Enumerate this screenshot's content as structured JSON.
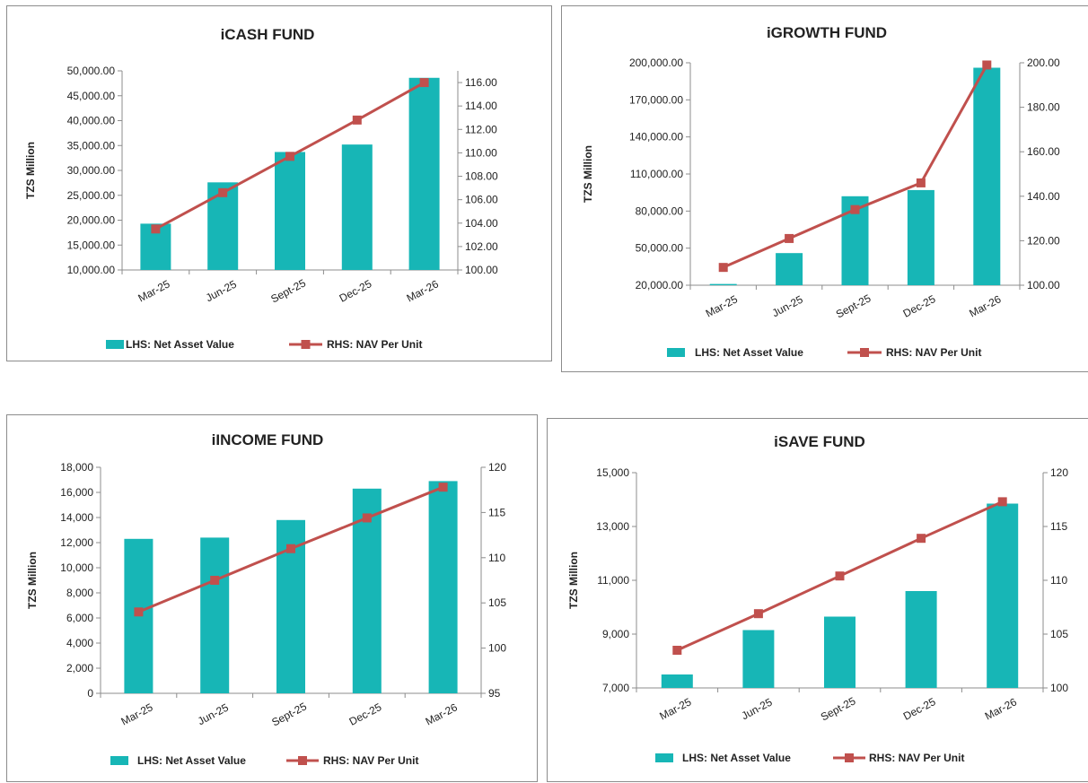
{
  "chart_data": [
    {
      "type": "bar+line",
      "title": "iCASH FUND",
      "ylabel": "TZS Million",
      "categories": [
        "Mar-25",
        "Jun-25",
        "Sept-25",
        "Dec-25",
        "Mar-26"
      ],
      "bar_series": {
        "name": "LHS: Net Asset Value",
        "values": [
          19300,
          27600,
          33700,
          35200,
          48600
        ],
        "color": "#17b6b6"
      },
      "line_series": {
        "name": "RHS: NAV Per Unit",
        "values": [
          103.5,
          106.6,
          109.7,
          112.8,
          116.0
        ],
        "color": "#c0504d"
      },
      "y_left": {
        "min": 10000,
        "max": 50000,
        "ticks": [
          "10,000.00",
          "15,000.00",
          "20,000.00",
          "25,000.00",
          "30,000.00",
          "35,000.00",
          "40,000.00",
          "45,000.00",
          "50,000.00"
        ]
      },
      "y_right": {
        "min": 100,
        "max": 117,
        "ticks": [
          "100.00",
          "102.00",
          "104.00",
          "106.00",
          "108.00",
          "110.00",
          "112.00",
          "114.00",
          "116.00"
        ],
        "tick_values": [
          100,
          102,
          104,
          106,
          108,
          110,
          112,
          114,
          116
        ]
      }
    },
    {
      "type": "bar+line",
      "title": "iGROWTH FUND",
      "ylabel": "TZS Million",
      "categories": [
        "Mar-25",
        "Jun-25",
        "Sept-25",
        "Dec-25",
        "Mar-26"
      ],
      "bar_series": {
        "name": "LHS: Net Asset Value",
        "values": [
          21000,
          46000,
          92000,
          97000,
          196000
        ],
        "color": "#17b6b6"
      },
      "line_series": {
        "name": "RHS: NAV Per Unit",
        "values": [
          108,
          121,
          134,
          146,
          199
        ],
        "color": "#c0504d"
      },
      "y_left": {
        "min": 20000,
        "max": 200000,
        "ticks": [
          "20,000.00",
          "50,000.00",
          "80,000.00",
          "110,000.00",
          "140,000.00",
          "170,000.00",
          "200,000.00"
        ]
      },
      "y_right": {
        "min": 100,
        "max": 200,
        "ticks": [
          "100.00",
          "120.00",
          "140.00",
          "160.00",
          "180.00",
          "200.00"
        ],
        "tick_values": [
          100,
          120,
          140,
          160,
          180,
          200
        ]
      }
    },
    {
      "type": "bar+line",
      "title": "iINCOME FUND",
      "ylabel": "TZS Million",
      "categories": [
        "Mar-25",
        "Jun-25",
        "Sept-25",
        "Dec-25",
        "Mar-26"
      ],
      "bar_series": {
        "name": "LHS: Net Asset Value",
        "values": [
          12300,
          12400,
          13800,
          16300,
          16900
        ],
        "color": "#17b6b6"
      },
      "line_series": {
        "name": "RHS: NAV Per Unit",
        "values": [
          104,
          107.5,
          111,
          114.4,
          117.8
        ],
        "color": "#c0504d"
      },
      "y_left": {
        "min": 0,
        "max": 18000,
        "ticks": [
          "0",
          "2,000",
          "4,000",
          "6,000",
          "8,000",
          "10,000",
          "12,000",
          "14,000",
          "16,000",
          "18,000"
        ]
      },
      "y_right": {
        "min": 95,
        "max": 120,
        "ticks": [
          "95",
          "100",
          "105",
          "110",
          "115",
          "120"
        ],
        "tick_values": [
          95,
          100,
          105,
          110,
          115,
          120
        ]
      }
    },
    {
      "type": "bar+line",
      "title": "iSAVE FUND",
      "ylabel": "TZS Million",
      "categories": [
        "Mar-25",
        "Jun-25",
        "Sept-25",
        "Dec-25",
        "Mar-26"
      ],
      "bar_series": {
        "name": "LHS: Net Asset Value",
        "values": [
          7500,
          9150,
          9650,
          10600,
          13850
        ],
        "color": "#17b6b6"
      },
      "line_series": {
        "name": "RHS: NAV Per Unit",
        "values": [
          103.5,
          106.9,
          110.4,
          113.9,
          117.3
        ],
        "color": "#c0504d"
      },
      "y_left": {
        "min": 7000,
        "max": 15000,
        "ticks": [
          "7,000",
          "9,000",
          "11,000",
          "13,000",
          "15,000"
        ]
      },
      "y_right": {
        "min": 100,
        "max": 120,
        "ticks": [
          "100",
          "105",
          "110",
          "115",
          "120"
        ],
        "tick_values": [
          100,
          105,
          110,
          115,
          120
        ]
      }
    }
  ]
}
